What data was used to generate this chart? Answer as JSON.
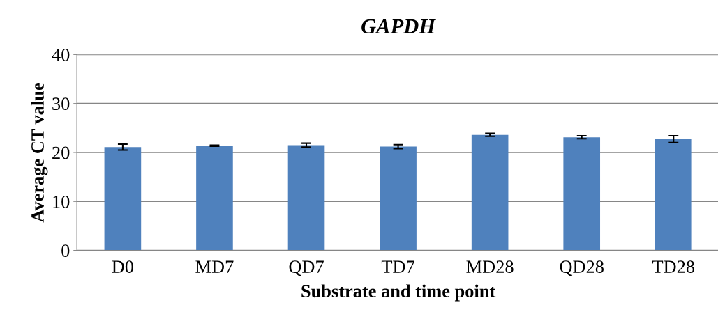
{
  "chart_data": {
    "type": "bar",
    "title": "GAPDH",
    "xlabel": "Substrate and time point",
    "ylabel": "Average CT value",
    "categories": [
      "D0",
      "MD7",
      "QD7",
      "TD7",
      "MD28",
      "QD28",
      "TD28"
    ],
    "values": [
      21.1,
      21.4,
      21.5,
      21.2,
      23.6,
      23.1,
      22.7
    ],
    "errors": [
      0.6,
      0.1,
      0.4,
      0.4,
      0.3,
      0.3,
      0.7
    ],
    "color": "#4f81bd",
    "ylim": [
      0,
      40
    ],
    "yticks": [
      0,
      10,
      20,
      30,
      40
    ],
    "grid": "y"
  }
}
